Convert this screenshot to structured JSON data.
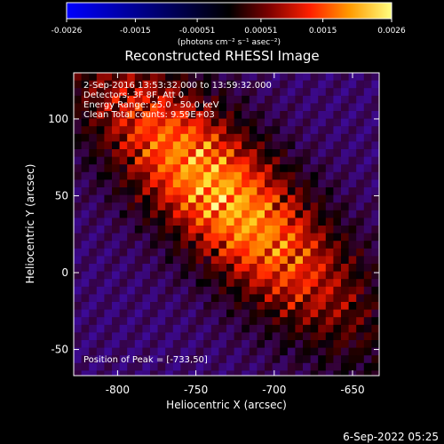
{
  "chart_data": {
    "type": "heatmap",
    "title": "Reconstructed RHESSI Image",
    "xlabel": "Heliocentric X (arcsec)",
    "ylabel": "Heliocentric Y (arcsec)",
    "xlim": [
      -828,
      -633
    ],
    "ylim": [
      -67,
      130
    ],
    "xticks": [
      -800,
      -750,
      -700,
      -650
    ],
    "yticks": [
      -50,
      0,
      50,
      100
    ],
    "colorbar": {
      "min": -0.0026,
      "max": 0.0026,
      "ticks": [
        "-0.0026",
        "-0.0015",
        "-0.00051",
        "0.00051",
        "0.0015",
        "0.0026"
      ],
      "units": "(photons cm⁻² s⁻¹ asec⁻²)"
    },
    "peak": {
      "x": -733,
      "y": 50
    },
    "annotations": {
      "time_range": "2-Sep-2016 13:53:32.000 to 13:59:32.000",
      "detectors": "Detectors: 3F 8F, Att 0",
      "energy_range": "Energy Range: 25.0 - 50.0 keV",
      "clean": "Clean     Total counts: 9.59E+03",
      "position_of_peak": "Position of Peak = [-733,50]"
    },
    "grid": false
  },
  "footer": {
    "timestamp": "6-Sep-2022 05:25"
  }
}
